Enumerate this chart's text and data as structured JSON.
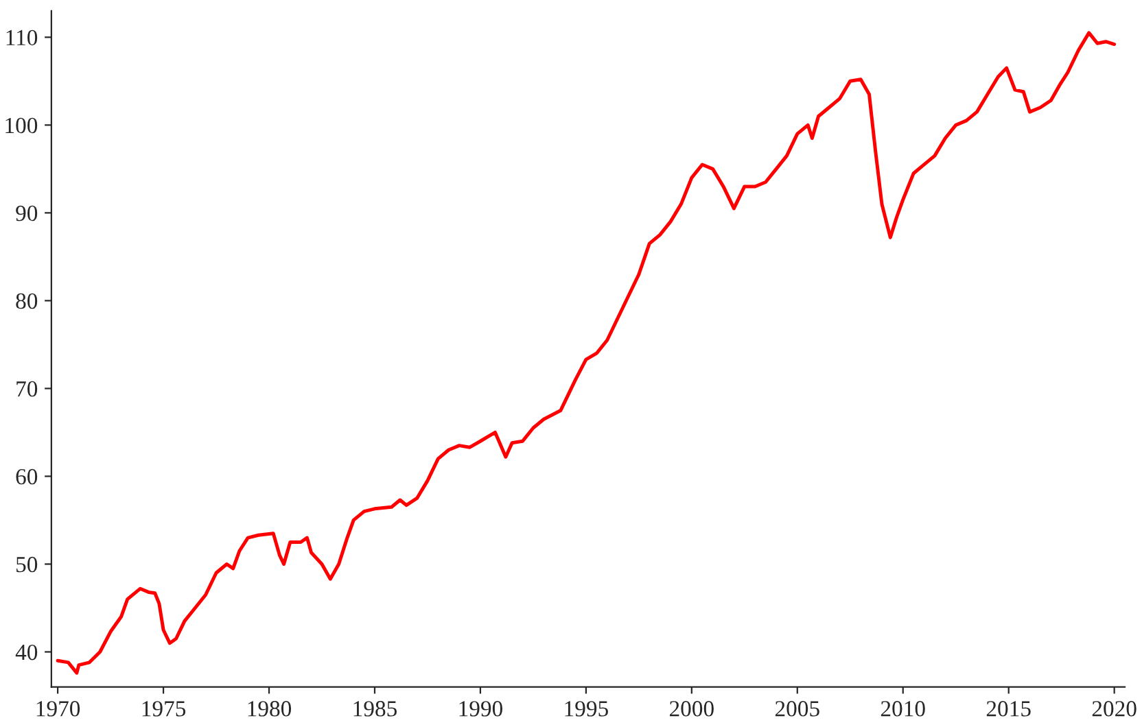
{
  "chart_data": {
    "type": "line",
    "x": [
      1970.0,
      1970.5,
      1970.9,
      1971.0,
      1971.5,
      1972.0,
      1972.5,
      1973.0,
      1973.3,
      1973.9,
      1974.3,
      1974.6,
      1974.8,
      1975.0,
      1975.3,
      1975.6,
      1976.0,
      1976.5,
      1977.0,
      1977.5,
      1978.0,
      1978.3,
      1978.6,
      1979.0,
      1979.5,
      1980.2,
      1980.5,
      1980.7,
      1981.0,
      1981.5,
      1981.8,
      1982.0,
      1982.5,
      1982.9,
      1983.3,
      1983.7,
      1984.0,
      1984.5,
      1985.0,
      1985.8,
      1986.2,
      1986.5,
      1987.0,
      1987.5,
      1988.0,
      1988.5,
      1989.0,
      1989.5,
      1990.0,
      1990.7,
      1991.2,
      1991.5,
      1992.0,
      1992.5,
      1993.0,
      1993.8,
      1994.5,
      1995.0,
      1995.5,
      1996.0,
      1996.5,
      1997.0,
      1997.5,
      1998.0,
      1998.5,
      1999.0,
      1999.5,
      2000.0,
      2000.5,
      2001.0,
      2001.5,
      2002.0,
      2002.5,
      2003.0,
      2003.5,
      2004.0,
      2004.5,
      2005.0,
      2005.5,
      2005.7,
      2006.0,
      2006.5,
      2007.0,
      2007.5,
      2008.0,
      2008.4,
      2008.7,
      2009.0,
      2009.4,
      2009.7,
      2010.0,
      2010.5,
      2011.0,
      2011.5,
      2012.0,
      2012.5,
      2013.0,
      2013.5,
      2014.0,
      2014.5,
      2014.9,
      2015.3,
      2015.7,
      2016.0,
      2016.5,
      2017.0,
      2017.4,
      2017.8,
      2018.3,
      2018.8,
      2019.2,
      2019.6,
      2020.0
    ],
    "series": [
      {
        "color": "#ff0000",
        "values": [
          39,
          38.8,
          37.6,
          38.5,
          38.8,
          40,
          42.3,
          44,
          46,
          47.2,
          46.8,
          46.7,
          45.5,
          42.5,
          41,
          41.5,
          43.5,
          45,
          46.5,
          49,
          50,
          49.5,
          51.5,
          53,
          53.3,
          53.5,
          51,
          50,
          52.5,
          52.5,
          53,
          51.3,
          50,
          48.3,
          50,
          53,
          55,
          56,
          56.3,
          56.5,
          57.3,
          56.7,
          57.5,
          59.5,
          62,
          63,
          63.5,
          63.3,
          64,
          65,
          62.2,
          63.8,
          64,
          65.5,
          66.5,
          67.5,
          71,
          73.3,
          74,
          75.5,
          78,
          80.5,
          83,
          86.5,
          87.5,
          89,
          91,
          94,
          95.5,
          95,
          93,
          90.5,
          93,
          93,
          93.5,
          95,
          96.5,
          99,
          100,
          98.5,
          101,
          102,
          103,
          105,
          105.2,
          103.5,
          97,
          91,
          87.2,
          89.5,
          91.5,
          94.5,
          95.5,
          96.5,
          98.5,
          100,
          100.5,
          101.5,
          103.5,
          105.5,
          106.5,
          104,
          103.8,
          101.5,
          102,
          102.8,
          104.5,
          106,
          108.5,
          110.5,
          109.3,
          109.5,
          109.2
        ]
      }
    ],
    "xlim": [
      1969.7,
      2020.5
    ],
    "xticks": [
      1970,
      1975,
      1980,
      1985,
      1990,
      1995,
      2000,
      2005,
      2010,
      2015,
      2020
    ],
    "ylim": [
      36,
      113
    ],
    "yticks": [
      40,
      50,
      60,
      70,
      80,
      90,
      100,
      110
    ],
    "grid": false,
    "line_style": "solid"
  }
}
